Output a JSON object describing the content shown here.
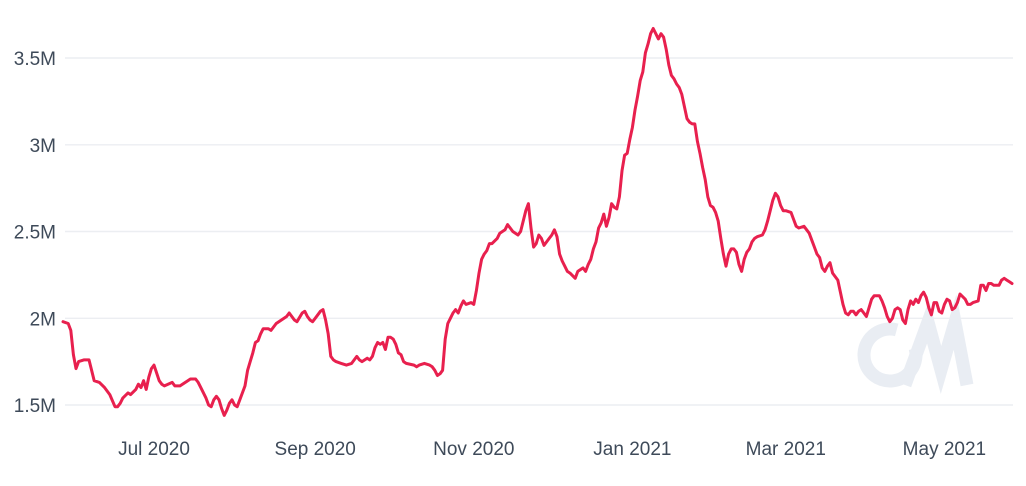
{
  "chart_data": {
    "type": "line",
    "title": "",
    "x_axis": {
      "start_date": "2020-05-27",
      "end_date": "2021-05-27",
      "domain_days": [
        0,
        365
      ],
      "tick_labels": [
        "Jul 2020",
        "Sep 2020",
        "Nov 2020",
        "Jan 2021",
        "Mar 2021",
        "May 2021"
      ],
      "tick_day_offsets": [
        35,
        97,
        158,
        219,
        278,
        339
      ]
    },
    "y_axis": {
      "tick_labels": [
        "1.5M",
        "2M",
        "2.5M",
        "3M",
        "3.5M"
      ],
      "tick_values": [
        1.5,
        2.0,
        2.5,
        3.0,
        3.5
      ],
      "unit": "M"
    },
    "grid": true,
    "legend": "none",
    "line_color": "#E8204E",
    "grid_color": "#ECEEF2",
    "label_color": "#3E4A59",
    "watermark_text": "CM",
    "watermark_color": "#E9EDF3",
    "background_color": "#FFFFFF",
    "points": [
      [
        0,
        1.98
      ],
      [
        2,
        1.97
      ],
      [
        3,
        1.93
      ],
      [
        4,
        1.79
      ],
      [
        5,
        1.71
      ],
      [
        6,
        1.75
      ],
      [
        8,
        1.76
      ],
      [
        10,
        1.76
      ],
      [
        11,
        1.7
      ],
      [
        12,
        1.64
      ],
      [
        14,
        1.63
      ],
      [
        16,
        1.6
      ],
      [
        18,
        1.56
      ],
      [
        20,
        1.49
      ],
      [
        21,
        1.49
      ],
      [
        22,
        1.51
      ],
      [
        23,
        1.54
      ],
      [
        25,
        1.57
      ],
      [
        26,
        1.56
      ],
      [
        28,
        1.59
      ],
      [
        29,
        1.62
      ],
      [
        30,
        1.6
      ],
      [
        31,
        1.64
      ],
      [
        32,
        1.59
      ],
      [
        33,
        1.66
      ],
      [
        34,
        1.71
      ],
      [
        35,
        1.73
      ],
      [
        37,
        1.64
      ],
      [
        38,
        1.62
      ],
      [
        39,
        1.61
      ],
      [
        42,
        1.63
      ],
      [
        43,
        1.61
      ],
      [
        45,
        1.61
      ],
      [
        48,
        1.64
      ],
      [
        49,
        1.65
      ],
      [
        51,
        1.65
      ],
      [
        52,
        1.63
      ],
      [
        53,
        1.6
      ],
      [
        55,
        1.54
      ],
      [
        56,
        1.5
      ],
      [
        57,
        1.49
      ],
      [
        58,
        1.53
      ],
      [
        59,
        1.55
      ],
      [
        60,
        1.53
      ],
      [
        61,
        1.48
      ],
      [
        62,
        1.44
      ],
      [
        63,
        1.47
      ],
      [
        64,
        1.51
      ],
      [
        65,
        1.53
      ],
      [
        66,
        1.5
      ],
      [
        67,
        1.49
      ],
      [
        68,
        1.53
      ],
      [
        69,
        1.57
      ],
      [
        70,
        1.61
      ],
      [
        71,
        1.7
      ],
      [
        72,
        1.75
      ],
      [
        73,
        1.8
      ],
      [
        74,
        1.86
      ],
      [
        75,
        1.87
      ],
      [
        76,
        1.91
      ],
      [
        77,
        1.94
      ],
      [
        79,
        1.94
      ],
      [
        80,
        1.93
      ],
      [
        82,
        1.97
      ],
      [
        84,
        1.99
      ],
      [
        86,
        2.01
      ],
      [
        87,
        2.03
      ],
      [
        88,
        2.01
      ],
      [
        89,
        1.99
      ],
      [
        90,
        1.98
      ],
      [
        92,
        2.03
      ],
      [
        93,
        2.04
      ],
      [
        94,
        2.01
      ],
      [
        95,
        1.99
      ],
      [
        96,
        1.98
      ],
      [
        97,
        2.0
      ],
      [
        98,
        2.02
      ],
      [
        99,
        2.04
      ],
      [
        100,
        2.05
      ],
      [
        101,
        1.99
      ],
      [
        102,
        1.91
      ],
      [
        103,
        1.78
      ],
      [
        104,
        1.76
      ],
      [
        105,
        1.75
      ],
      [
        107,
        1.74
      ],
      [
        109,
        1.73
      ],
      [
        111,
        1.74
      ],
      [
        112,
        1.76
      ],
      [
        113,
        1.78
      ],
      [
        114,
        1.76
      ],
      [
        115,
        1.75
      ],
      [
        117,
        1.77
      ],
      [
        118,
        1.76
      ],
      [
        119,
        1.78
      ],
      [
        120,
        1.83
      ],
      [
        121,
        1.86
      ],
      [
        122,
        1.85
      ],
      [
        123,
        1.86
      ],
      [
        124,
        1.82
      ],
      [
        125,
        1.89
      ],
      [
        126,
        1.89
      ],
      [
        127,
        1.88
      ],
      [
        128,
        1.85
      ],
      [
        129,
        1.8
      ],
      [
        130,
        1.79
      ],
      [
        131,
        1.75
      ],
      [
        132,
        1.74
      ],
      [
        135,
        1.73
      ],
      [
        136,
        1.72
      ],
      [
        137,
        1.73
      ],
      [
        139,
        1.74
      ],
      [
        141,
        1.73
      ],
      [
        142,
        1.72
      ],
      [
        143,
        1.7
      ],
      [
        144,
        1.67
      ],
      [
        145,
        1.68
      ],
      [
        146,
        1.7
      ],
      [
        147,
        1.88
      ],
      [
        148,
        1.97
      ],
      [
        149,
        2.0
      ],
      [
        150,
        2.03
      ],
      [
        151,
        2.05
      ],
      [
        152,
        2.03
      ],
      [
        153,
        2.07
      ],
      [
        154,
        2.1
      ],
      [
        155,
        2.08
      ],
      [
        157,
        2.09
      ],
      [
        158,
        2.08
      ],
      [
        159,
        2.16
      ],
      [
        160,
        2.26
      ],
      [
        161,
        2.34
      ],
      [
        162,
        2.37
      ],
      [
        163,
        2.39
      ],
      [
        164,
        2.43
      ],
      [
        165,
        2.43
      ],
      [
        167,
        2.46
      ],
      [
        168,
        2.49
      ],
      [
        170,
        2.51
      ],
      [
        171,
        2.54
      ],
      [
        172,
        2.52
      ],
      [
        173,
        2.5
      ],
      [
        175,
        2.48
      ],
      [
        176,
        2.5
      ],
      [
        177,
        2.56
      ],
      [
        178,
        2.62
      ],
      [
        179,
        2.66
      ],
      [
        180,
        2.52
      ],
      [
        181,
        2.41
      ],
      [
        182,
        2.43
      ],
      [
        183,
        2.48
      ],
      [
        184,
        2.46
      ],
      [
        185,
        2.42
      ],
      [
        187,
        2.46
      ],
      [
        188,
        2.48
      ],
      [
        189,
        2.51
      ],
      [
        190,
        2.47
      ],
      [
        191,
        2.37
      ],
      [
        192,
        2.33
      ],
      [
        193,
        2.3
      ],
      [
        194,
        2.27
      ],
      [
        195,
        2.26
      ],
      [
        197,
        2.23
      ],
      [
        198,
        2.27
      ],
      [
        200,
        2.29
      ],
      [
        201,
        2.27
      ],
      [
        202,
        2.31
      ],
      [
        203,
        2.34
      ],
      [
        204,
        2.4
      ],
      [
        205,
        2.44
      ],
      [
        206,
        2.52
      ],
      [
        207,
        2.55
      ],
      [
        208,
        2.6
      ],
      [
        209,
        2.53
      ],
      [
        210,
        2.58
      ],
      [
        211,
        2.66
      ],
      [
        212,
        2.64
      ],
      [
        213,
        2.63
      ],
      [
        214,
        2.7
      ],
      [
        215,
        2.85
      ],
      [
        216,
        2.94
      ],
      [
        217,
        2.95
      ],
      [
        218,
        3.03
      ],
      [
        219,
        3.1
      ],
      [
        220,
        3.2
      ],
      [
        221,
        3.28
      ],
      [
        222,
        3.37
      ],
      [
        223,
        3.42
      ],
      [
        224,
        3.53
      ],
      [
        225,
        3.58
      ],
      [
        226,
        3.64
      ],
      [
        227,
        3.67
      ],
      [
        228,
        3.64
      ],
      [
        229,
        3.61
      ],
      [
        230,
        3.64
      ],
      [
        231,
        3.62
      ],
      [
        232,
        3.55
      ],
      [
        233,
        3.46
      ],
      [
        234,
        3.4
      ],
      [
        235,
        3.38
      ],
      [
        236,
        3.35
      ],
      [
        237,
        3.33
      ],
      [
        238,
        3.29
      ],
      [
        239,
        3.22
      ],
      [
        240,
        3.15
      ],
      [
        241,
        3.13
      ],
      [
        242,
        3.12
      ],
      [
        243,
        3.12
      ],
      [
        244,
        3.02
      ],
      [
        245,
        2.95
      ],
      [
        246,
        2.87
      ],
      [
        247,
        2.8
      ],
      [
        248,
        2.7
      ],
      [
        249,
        2.65
      ],
      [
        250,
        2.64
      ],
      [
        251,
        2.61
      ],
      [
        252,
        2.56
      ],
      [
        253,
        2.46
      ],
      [
        254,
        2.37
      ],
      [
        255,
        2.3
      ],
      [
        256,
        2.37
      ],
      [
        257,
        2.4
      ],
      [
        258,
        2.4
      ],
      [
        259,
        2.38
      ],
      [
        260,
        2.31
      ],
      [
        261,
        2.27
      ],
      [
        262,
        2.34
      ],
      [
        263,
        2.38
      ],
      [
        264,
        2.4
      ],
      [
        265,
        2.44
      ],
      [
        266,
        2.46
      ],
      [
        267,
        2.47
      ],
      [
        269,
        2.48
      ],
      [
        270,
        2.51
      ],
      [
        271,
        2.56
      ],
      [
        272,
        2.62
      ],
      [
        273,
        2.68
      ],
      [
        274,
        2.72
      ],
      [
        275,
        2.7
      ],
      [
        276,
        2.65
      ],
      [
        277,
        2.62
      ],
      [
        278,
        2.62
      ],
      [
        280,
        2.61
      ],
      [
        281,
        2.57
      ],
      [
        282,
        2.53
      ],
      [
        283,
        2.52
      ],
      [
        285,
        2.53
      ],
      [
        287,
        2.49
      ],
      [
        288,
        2.45
      ],
      [
        289,
        2.41
      ],
      [
        290,
        2.37
      ],
      [
        291,
        2.35
      ],
      [
        292,
        2.29
      ],
      [
        293,
        2.27
      ],
      [
        294,
        2.3
      ],
      [
        295,
        2.32
      ],
      [
        296,
        2.26
      ],
      [
        298,
        2.22
      ],
      [
        299,
        2.15
      ],
      [
        300,
        2.08
      ],
      [
        301,
        2.03
      ],
      [
        302,
        2.02
      ],
      [
        303,
        2.04
      ],
      [
        304,
        2.04
      ],
      [
        305,
        2.02
      ],
      [
        306,
        2.04
      ],
      [
        307,
        2.05
      ],
      [
        308,
        2.03
      ],
      [
        309,
        2.01
      ],
      [
        310,
        2.06
      ],
      [
        311,
        2.11
      ],
      [
        312,
        2.13
      ],
      [
        313,
        2.13
      ],
      [
        314,
        2.13
      ],
      [
        315,
        2.1
      ],
      [
        316,
        2.06
      ],
      [
        317,
        2.01
      ],
      [
        318,
        1.98
      ],
      [
        319,
        2.0
      ],
      [
        320,
        2.05
      ],
      [
        321,
        2.06
      ],
      [
        322,
        2.05
      ],
      [
        323,
        1.99
      ],
      [
        324,
        1.97
      ],
      [
        325,
        2.05
      ],
      [
        326,
        2.1
      ],
      [
        327,
        2.08
      ],
      [
        328,
        2.11
      ],
      [
        329,
        2.09
      ],
      [
        330,
        2.13
      ],
      [
        331,
        2.15
      ],
      [
        332,
        2.12
      ],
      [
        333,
        2.06
      ],
      [
        334,
        2.02
      ],
      [
        335,
        2.09
      ],
      [
        336,
        2.09
      ],
      [
        337,
        2.04
      ],
      [
        338,
        2.03
      ],
      [
        339,
        2.08
      ],
      [
        340,
        2.11
      ],
      [
        341,
        2.1
      ],
      [
        342,
        2.05
      ],
      [
        343,
        2.06
      ],
      [
        344,
        2.09
      ],
      [
        345,
        2.14
      ],
      [
        347,
        2.11
      ],
      [
        348,
        2.08
      ],
      [
        349,
        2.08
      ],
      [
        350,
        2.09
      ],
      [
        352,
        2.1
      ],
      [
        353,
        2.19
      ],
      [
        354,
        2.19
      ],
      [
        355,
        2.16
      ],
      [
        356,
        2.2
      ],
      [
        357,
        2.2
      ],
      [
        358,
        2.19
      ],
      [
        360,
        2.19
      ],
      [
        361,
        2.22
      ],
      [
        362,
        2.23
      ],
      [
        363,
        2.22
      ],
      [
        364,
        2.21
      ],
      [
        365,
        2.2
      ]
    ]
  }
}
